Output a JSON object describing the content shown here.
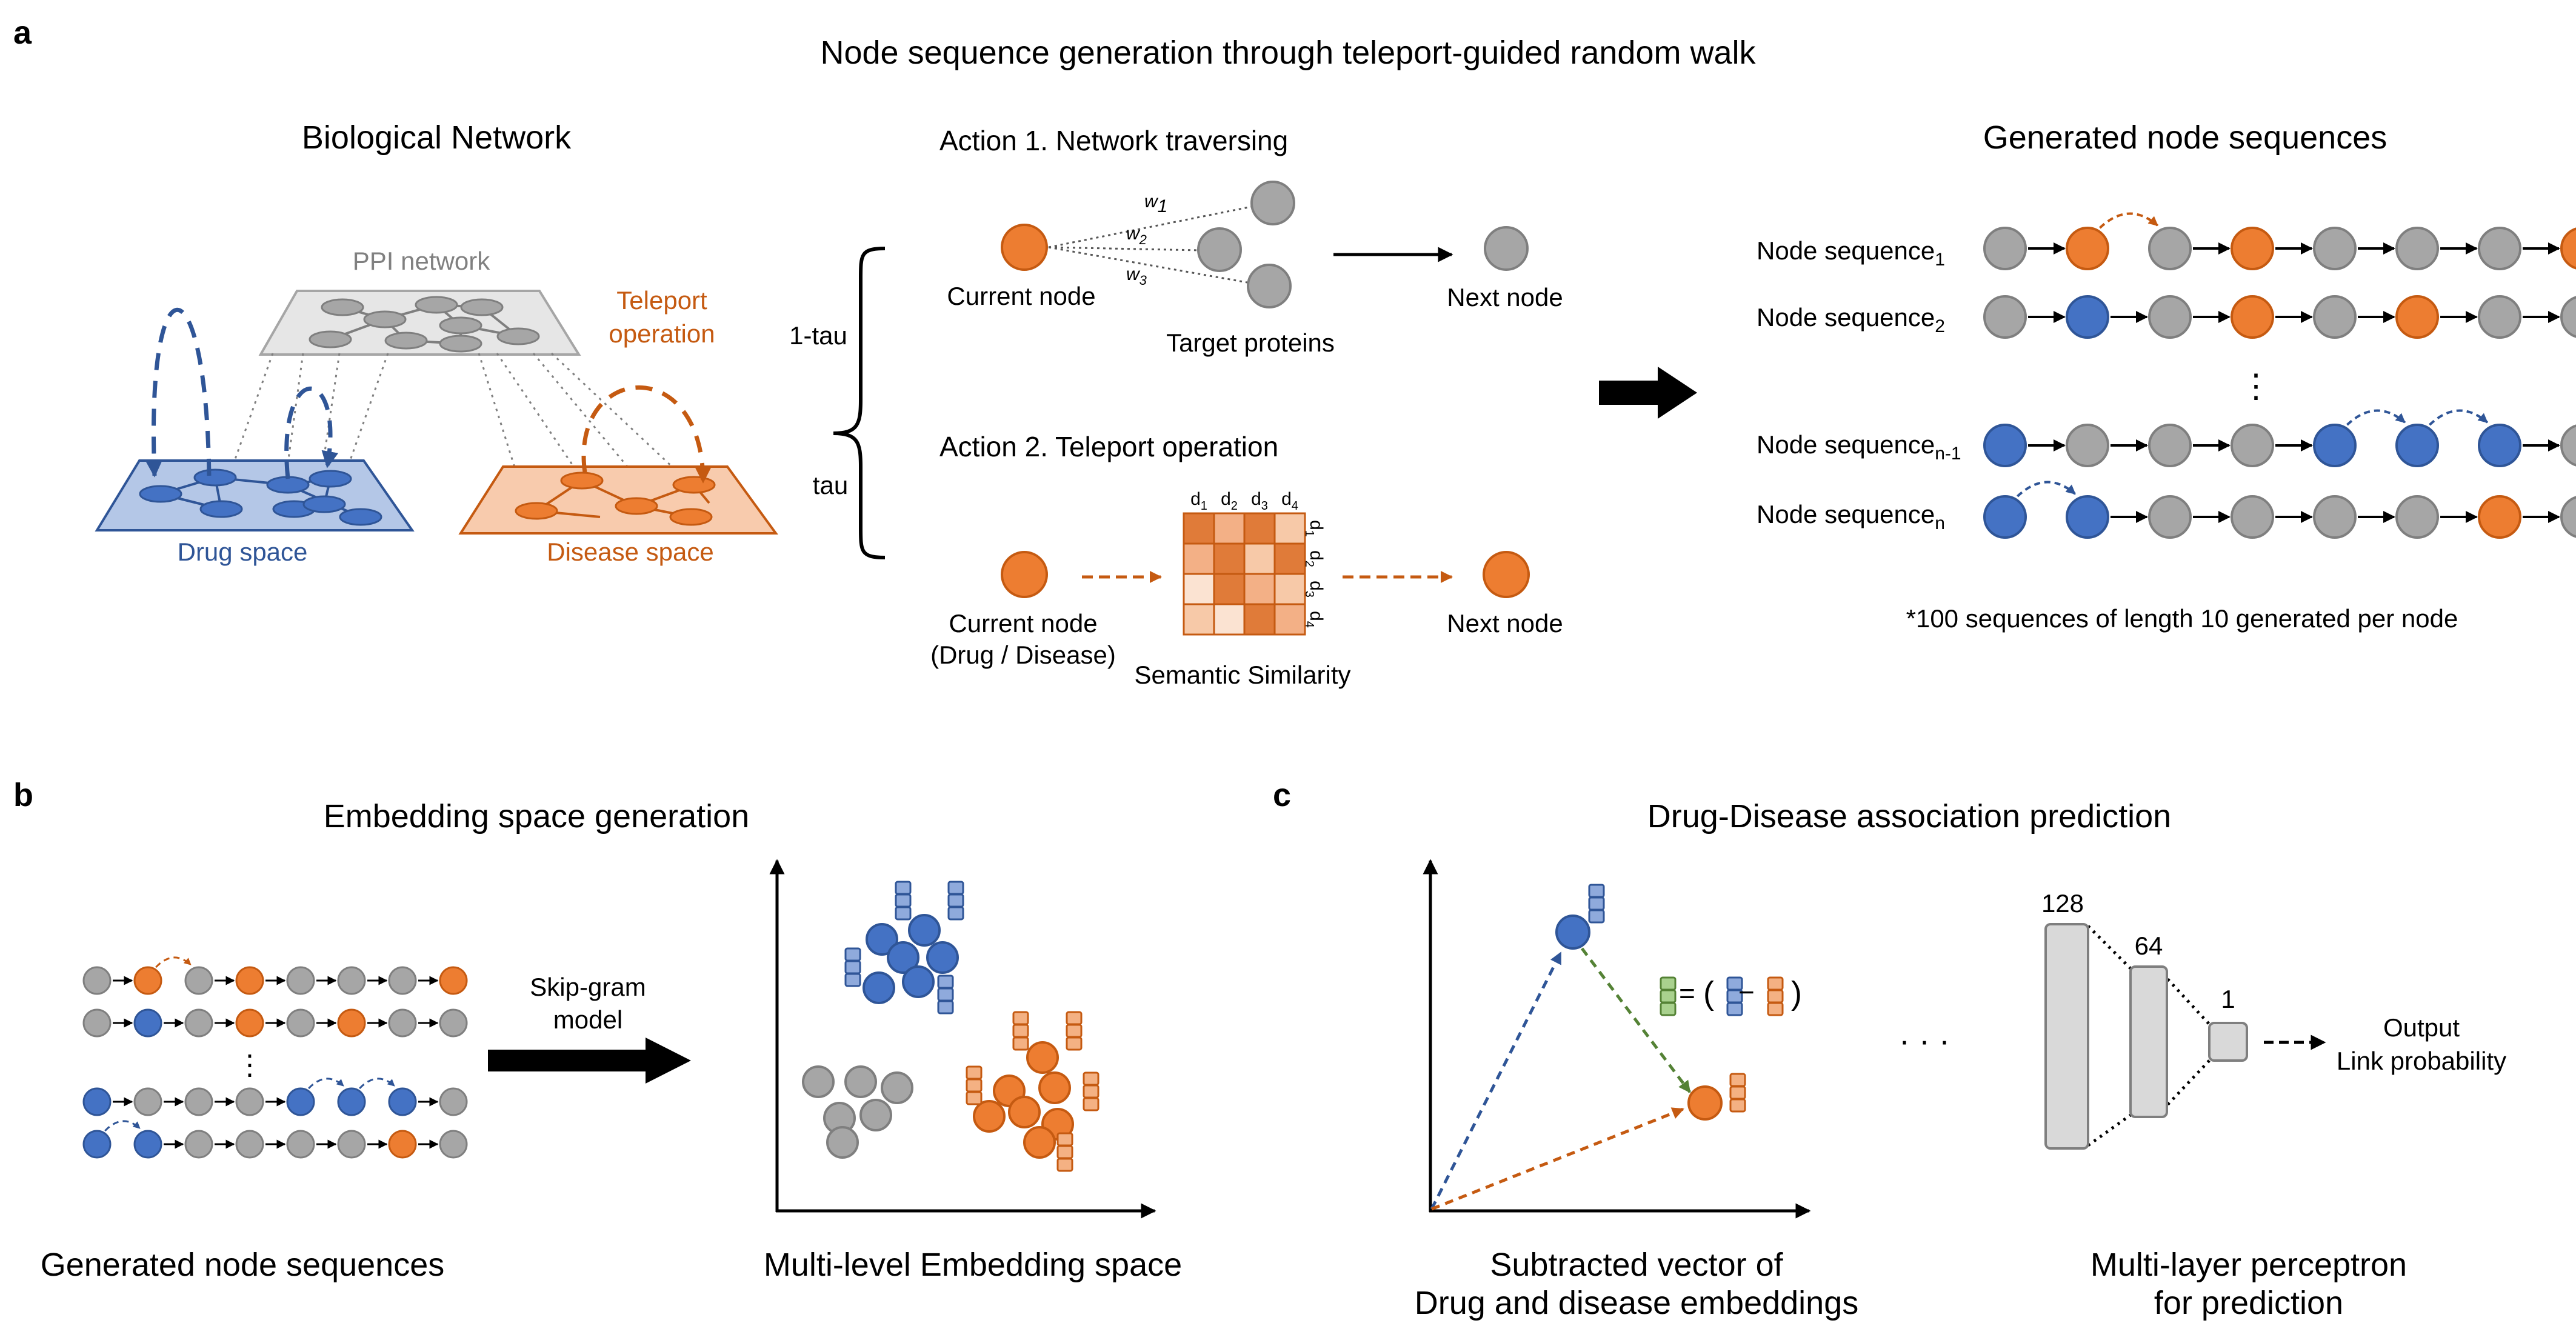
{
  "panels": {
    "a": {
      "letter": "a",
      "title": "Node sequence generation through teleport-guided random walk",
      "bio_network_title": "Biological Network",
      "ppi_label": "PPI network",
      "teleport_label_line1": "Teleport",
      "teleport_label_line2": "operation",
      "drug_space_label": "Drug space",
      "disease_space_label": "Disease space",
      "brace_top": "1-tau",
      "brace_bottom": "tau",
      "action1_title": "Action 1. Network traversing",
      "current_node": "Current node",
      "target_proteins": "Target proteins",
      "next_node": "Next node",
      "weights": [
        "w",
        "w",
        "w"
      ],
      "weight_subs": [
        "1",
        "2",
        "3"
      ],
      "action2_title": "Action 2. Teleport operation",
      "current_node2_line1": "Current node",
      "current_node2_line2": "(Drug / Disease)",
      "semantic_similarity": "Semantic Similarity",
      "next_node2": "Next node",
      "matrix_col_labels": [
        "d",
        "d",
        "d",
        "d"
      ],
      "matrix_subs": [
        "1",
        "2",
        "3",
        "4"
      ],
      "generated_title": "Generated node sequences",
      "seq_label_base": "Node sequence",
      "seq_subs": [
        "1",
        "2",
        "n-1",
        "n"
      ],
      "ellipsis": "⋮",
      "footnote": "*100 sequences of length 10 generated per node"
    },
    "b": {
      "letter": "b",
      "title": "Embedding space generation",
      "arrow_label_line1": "Skip-gram",
      "arrow_label_line2": "model",
      "left_caption": "Generated node sequences",
      "right_caption": "Multi-level Embedding space",
      "ellipsis": "⋮"
    },
    "c": {
      "letter": "c",
      "title": "Drug-Disease association prediction",
      "formula_eq": "=",
      "formula_minus": "−",
      "dots": "· · ·",
      "caption_left_line1": "Subtracted vector of",
      "caption_left_line2": "Drug and disease embeddings",
      "caption_right_line1": "Multi-layer perceptron",
      "caption_right_line2": "for prediction",
      "layer_sizes": [
        "128",
        "64",
        "1"
      ],
      "output_line1": "Output",
      "output_line2": "Link probability"
    }
  },
  "colors": {
    "drug": "#4a6fc4",
    "disease": "#e07b39",
    "neutral": "#a6a6a6",
    "green": "#6a9f3a"
  }
}
